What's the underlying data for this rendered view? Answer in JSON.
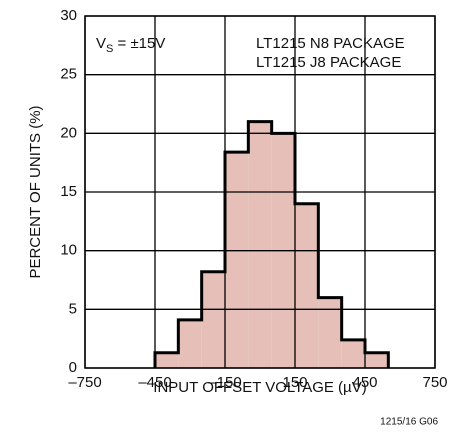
{
  "chart_data": {
    "type": "histogram",
    "bins": [
      -450,
      -350,
      -250,
      -150,
      -50,
      50,
      150,
      250,
      350,
      450,
      550
    ],
    "values": [
      1.3,
      4.1,
      8.2,
      18.4,
      21,
      20,
      14,
      6,
      2.4,
      1.3
    ],
    "color": "#e6bfb8",
    "edge_color": "#000000",
    "xlabel": "INPUT OFFSET VOLTAGE (µV)",
    "ylabel": "PERCENT OF UNITS (%)",
    "xlim": [
      -750,
      750
    ],
    "xticks": [
      {
        "value": -750,
        "label": "–750"
      },
      {
        "value": -450,
        "label": "–450"
      },
      {
        "value": -150,
        "label": "–150"
      },
      150,
      450,
      750
    ],
    "ylim": [
      0,
      30
    ],
    "yticks": [
      0,
      5,
      10,
      15,
      20,
      25,
      30
    ],
    "grid": true,
    "annotations": {
      "supply_main": "V",
      "supply_sub": "S",
      "supply_rest": " = ±15V",
      "package_1": "LT1215 N8 PACKAGE",
      "package_2": "LT1215 J8 PACKAGE"
    },
    "figure_id": "1215/16 G06"
  }
}
